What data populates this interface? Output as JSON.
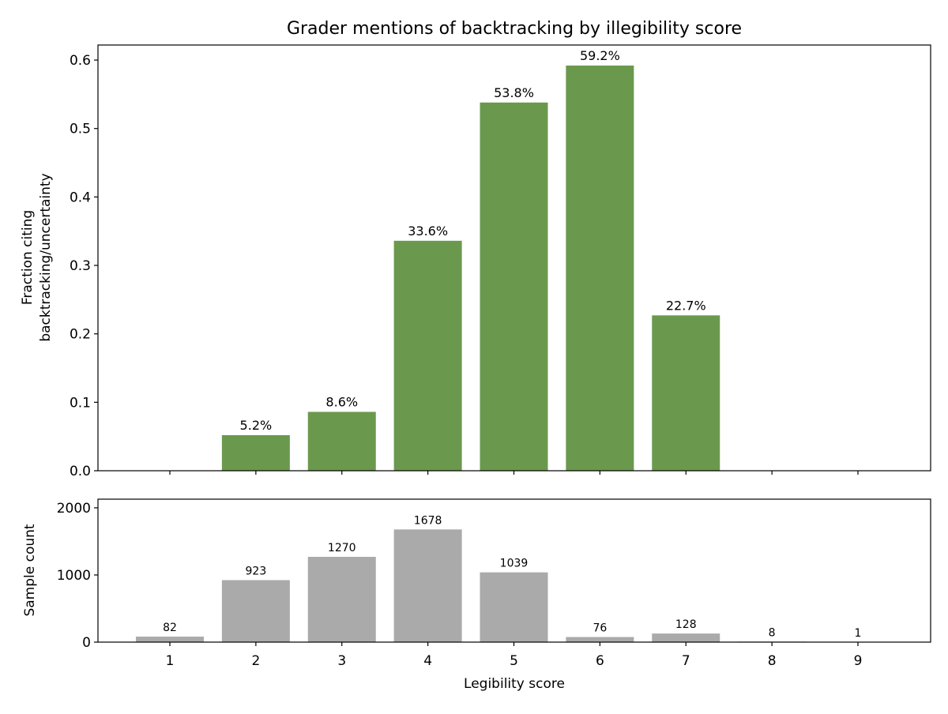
{
  "chart_data": [
    {
      "type": "bar",
      "title": "Grader mentions of backtracking by illegibility score",
      "xlabel": "",
      "ylabel_lines": [
        "Fraction citing",
        "backtracking/uncertainty"
      ],
      "categories": [
        "1",
        "2",
        "3",
        "4",
        "5",
        "6",
        "7",
        "8",
        "9"
      ],
      "values": [
        0,
        0.052,
        0.086,
        0.336,
        0.538,
        0.592,
        0.227,
        0,
        0
      ],
      "data_labels": [
        null,
        "5.2%",
        "8.6%",
        "33.6%",
        "53.8%",
        "59.2%",
        "22.7%",
        null,
        null
      ],
      "ylim": [
        0,
        0.622
      ],
      "yticks": [
        "0.0",
        "0.1",
        "0.2",
        "0.3",
        "0.4",
        "0.5",
        "0.6"
      ],
      "ytick_values": [
        0,
        0.1,
        0.2,
        0.3,
        0.4,
        0.5,
        0.6
      ],
      "color": "#6a994e",
      "grid": false
    },
    {
      "type": "bar",
      "title": "",
      "xlabel": "Legibility score",
      "ylabel": "Sample count",
      "categories": [
        "1",
        "2",
        "3",
        "4",
        "5",
        "6",
        "7",
        "8",
        "9"
      ],
      "values": [
        82,
        923,
        1270,
        1678,
        1039,
        76,
        128,
        8,
        1
      ],
      "data_labels": [
        "82",
        "923",
        "1270",
        "1678",
        "1039",
        "76",
        "128",
        "8",
        "1"
      ],
      "ylim": [
        0,
        2129
      ],
      "yticks": [
        "0",
        "1000",
        "2000"
      ],
      "ytick_values": [
        0,
        1000,
        2000
      ],
      "color": "#aaaaaa",
      "grid": false
    }
  ]
}
